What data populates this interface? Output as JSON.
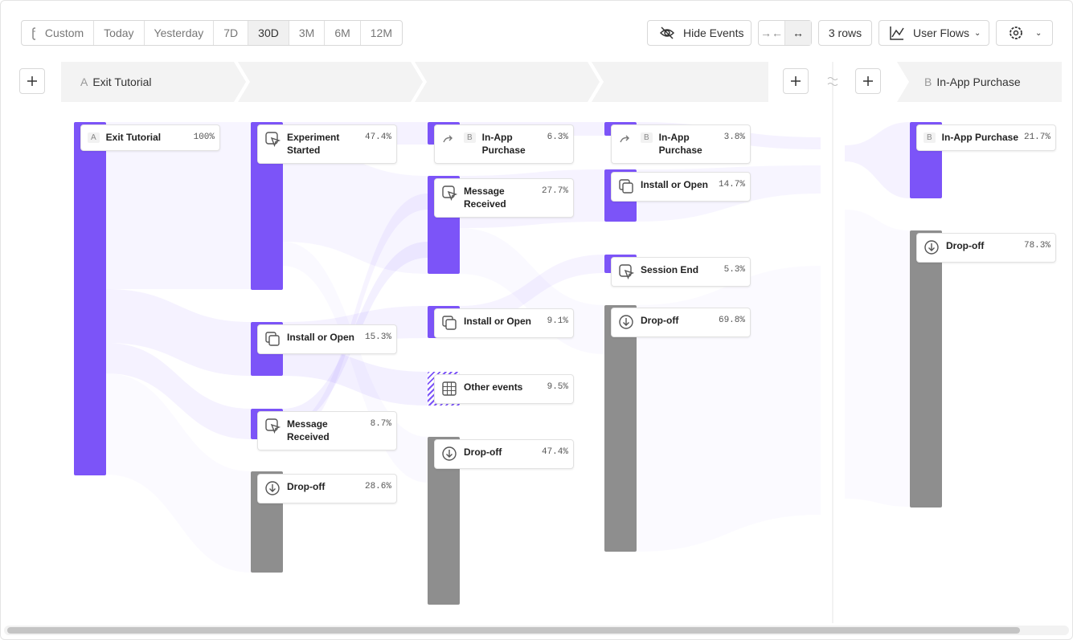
{
  "toolbar": {
    "ranges": [
      "Custom",
      "Today",
      "Yesterday",
      "7D",
      "30D",
      "3M",
      "6M",
      "12M"
    ],
    "hide_events": "Hide Events",
    "rows": "3 rows",
    "view": "User Flows"
  },
  "steps": [
    {
      "letter": "A",
      "name": "Exit Tutorial"
    },
    {
      "letter": "B",
      "name": "In-App Purchase"
    }
  ],
  "columns": [
    {
      "nodes": [
        {
          "badge": "A",
          "label": "Exit Tutorial",
          "value": 100,
          "value_label": "100%"
        }
      ]
    },
    {
      "nodes": [
        {
          "label": "Experiment Started",
          "value": 47.4,
          "value_label": "47.4%"
        },
        {
          "label": "Install or Open",
          "value": 15.3,
          "value_label": "15.3%"
        },
        {
          "label": "Message Received",
          "value": 8.7,
          "value_label": "8.7%"
        },
        {
          "label": "Drop-off",
          "value": 28.6,
          "value_label": "28.6%"
        }
      ]
    },
    {
      "nodes": [
        {
          "badge": "B",
          "label": "In-App Purchase",
          "value": 6.3,
          "value_label": "6.3%"
        },
        {
          "label": "Message Received",
          "value": 27.7,
          "value_label": "27.7%"
        },
        {
          "label": "Install or Open",
          "value": 9.1,
          "value_label": "9.1%"
        },
        {
          "label": "Other events",
          "value": 9.5,
          "value_label": "9.5%"
        },
        {
          "label": "Drop-off",
          "value": 47.4,
          "value_label": "47.4%"
        }
      ]
    },
    {
      "nodes": [
        {
          "badge": "B",
          "label": "In-App Purchase",
          "value": 3.8,
          "value_label": "3.8%"
        },
        {
          "label": "Install or Open",
          "value": 14.7,
          "value_label": "14.7%"
        },
        {
          "label": "Session End",
          "value": 5.3,
          "value_label": "5.3%"
        },
        {
          "label": "Drop-off",
          "value": 69.8,
          "value_label": "69.8%"
        }
      ]
    },
    {
      "nodes": [
        {
          "badge": "B",
          "label": "In-App Purchase",
          "value": 21.7,
          "value_label": "21.7%"
        },
        {
          "label": "Drop-off",
          "value": 78.3,
          "value_label": "78.3%"
        }
      ]
    }
  ]
}
